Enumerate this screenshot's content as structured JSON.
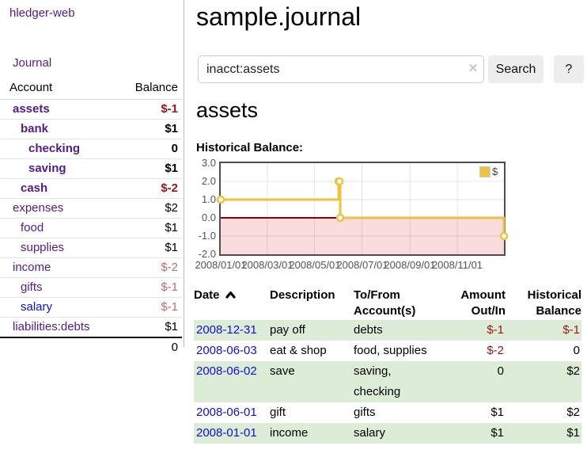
{
  "brand": "hledger-web",
  "sidebar": {
    "journal_link": "Journal",
    "accounts": {
      "header_account": "Account",
      "header_balance": "Balance",
      "rows": [
        {
          "name": "assets",
          "balance": "$-1"
        },
        {
          "name": "bank",
          "balance": "$1"
        },
        {
          "name": "checking",
          "balance": "0"
        },
        {
          "name": "saving",
          "balance": "$1"
        },
        {
          "name": "cash",
          "balance": "$-2"
        },
        {
          "name": "expenses",
          "balance": "$2"
        },
        {
          "name": "food",
          "balance": "$1"
        },
        {
          "name": "supplies",
          "balance": "$1"
        },
        {
          "name": "income",
          "balance": "$-2"
        },
        {
          "name": "gifts",
          "balance": "$-1"
        },
        {
          "name": "salary",
          "balance": "$-1"
        },
        {
          "name": "liabilities:debts",
          "balance": "$1"
        }
      ],
      "total": "0"
    }
  },
  "main": {
    "title": "sample.journal",
    "search": {
      "value": "inacct:assets",
      "clear_label": "✕",
      "search_button": "Search",
      "help_button": "?"
    },
    "account_heading": "assets",
    "chart_title": "Historical Balance:"
  },
  "chart_data": {
    "type": "line",
    "title": "Historical Balance",
    "legend": {
      "label": "$",
      "position": "top-right"
    },
    "x_tick_labels": [
      "2008/01/01",
      "2008/03/01",
      "2008/05/01",
      "2008/07/01",
      "2008/09/01",
      "2008/11/01"
    ],
    "y_tick_labels": [
      "3.0",
      "2.0",
      "1.0",
      "0.0",
      "-1.0",
      "-2.0"
    ],
    "y_ticks": [
      3,
      2,
      1,
      0,
      -1,
      -2
    ],
    "xlim": [
      "2008-01-01",
      "2008-12-31"
    ],
    "ylim": [
      -2,
      3
    ],
    "grid": true,
    "series": [
      {
        "name": "$",
        "color": "#edc240",
        "steps": true,
        "points": [
          [
            "2008-01-01",
            1
          ],
          [
            "2008-06-01",
            2
          ],
          [
            "2008-06-02",
            2
          ],
          [
            "2008-06-03",
            0
          ],
          [
            "2008-12-31",
            -1
          ]
        ]
      }
    ],
    "colors": {
      "negative_fill": "#fbdcdc",
      "zero_line": "#8b0000",
      "border": "#4d4d4d"
    }
  },
  "register": {
    "headers": {
      "date": "Date",
      "description": "Description",
      "tofrom_line1": "To/From",
      "tofrom_line2": "Account(s)",
      "amount_line1": "Amount",
      "amount_line2": "Out/In",
      "balance_line1": "Historical",
      "balance_line2": "Balance"
    },
    "rows": [
      {
        "date": "2008-12-31",
        "description": "pay off",
        "accounts": "debts",
        "amount": "$-1",
        "balance": "$-1"
      },
      {
        "date": "2008-06-03",
        "description": "eat & shop",
        "accounts": "food, supplies",
        "amount": "$-2",
        "balance": "0"
      },
      {
        "date": "2008-06-02",
        "description": "save",
        "accounts": "saving, checking",
        "amount": "0",
        "balance": "$2"
      },
      {
        "date": "2008-06-01",
        "description": "gift",
        "accounts": "gifts",
        "amount": "$1",
        "balance": "$2"
      },
      {
        "date": "2008-01-01",
        "description": "income",
        "accounts": "salary",
        "amount": "$1",
        "balance": "$1"
      }
    ]
  }
}
